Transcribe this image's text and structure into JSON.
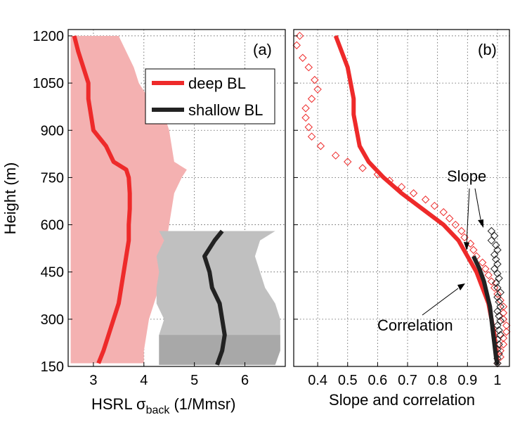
{
  "chart_data": [
    {
      "type": "line",
      "panel_label": "(a)",
      "xlabel": "HSRL σ",
      "xlabel_sub": "back",
      "xlabel_units": " (1/Mmsr)",
      "ylabel": "Height (m)",
      "xlim": [
        2.5,
        6.8
      ],
      "ylim": [
        150,
        1220
      ],
      "xticks": [
        3,
        4,
        5,
        6
      ],
      "yticks": [
        150,
        300,
        450,
        600,
        750,
        900,
        1050,
        1200
      ],
      "grid": true,
      "legend_position": "top-center",
      "series": [
        {
          "name": "deep BL",
          "color": "#ee2a2a",
          "band_color": "#f4b1b1",
          "height": [
            160,
            200,
            250,
            300,
            350,
            400,
            450,
            500,
            550,
            600,
            650,
            700,
            750,
            775,
            800,
            850,
            900,
            950,
            1000,
            1050,
            1100,
            1150,
            1200
          ],
          "mean": [
            3.1,
            3.2,
            3.3,
            3.4,
            3.5,
            3.55,
            3.6,
            3.65,
            3.7,
            3.7,
            3.72,
            3.72,
            3.7,
            3.65,
            3.4,
            3.25,
            3.0,
            2.95,
            2.9,
            2.9,
            2.8,
            2.7,
            2.62
          ],
          "lower": [
            2.55,
            2.55,
            2.55,
            2.55,
            2.55,
            2.55,
            2.55,
            2.55,
            2.55,
            2.55,
            2.55,
            2.55,
            2.55,
            2.55,
            2.55,
            2.55,
            2.55,
            2.55,
            2.55,
            2.55,
            2.55,
            2.55,
            2.55
          ],
          "upper": [
            4.0,
            4.0,
            4.05,
            4.1,
            4.2,
            4.3,
            4.35,
            4.4,
            4.45,
            4.5,
            4.55,
            4.6,
            4.75,
            4.85,
            4.6,
            4.55,
            4.5,
            4.4,
            4.1,
            3.9,
            3.8,
            3.65,
            3.5
          ]
        },
        {
          "name": "shallow BL",
          "color": "#222222",
          "band_color": "#c0c0c0",
          "band_color_low": "#a8a8a8",
          "height": [
            155,
            200,
            250,
            300,
            350,
            400,
            450,
            500,
            550,
            580
          ],
          "mean": [
            5.45,
            5.55,
            5.6,
            5.55,
            5.5,
            5.35,
            5.3,
            5.2,
            5.4,
            5.55
          ],
          "lower": [
            4.3,
            4.3,
            4.3,
            4.4,
            4.25,
            4.25,
            4.3,
            4.25,
            4.4,
            4.3
          ],
          "upper": [
            6.6,
            6.7,
            6.7,
            6.7,
            6.6,
            6.4,
            6.3,
            6.2,
            6.3,
            6.6
          ]
        }
      ]
    },
    {
      "type": "line",
      "panel_label": "(b)",
      "xlabel": "Slope and correlation",
      "xlim": [
        0.32,
        1.04
      ],
      "ylim": [
        150,
        1220
      ],
      "xticks": [
        0.4,
        0.5,
        0.6,
        0.7,
        0.8,
        0.9,
        1
      ],
      "xtick_labels": [
        "0.4",
        "0.5",
        "0.6",
        "0.7",
        "0.8",
        "0.9",
        "1"
      ],
      "yticks": [
        150,
        300,
        450,
        600,
        750,
        900,
        1050,
        1200
      ],
      "grid": true,
      "annotations": [
        {
          "text": "Slope"
        },
        {
          "text": "Correlation"
        }
      ],
      "series": [
        {
          "name": "deep BL correlation",
          "style": "line",
          "color": "#ee2a2a",
          "height": [
            1200,
            1150,
            1100,
            1050,
            1000,
            950,
            900,
            850,
            800,
            750,
            700,
            650,
            600,
            550,
            500,
            450,
            400,
            350,
            300,
            250,
            200,
            160
          ],
          "value": [
            0.46,
            0.48,
            0.5,
            0.51,
            0.52,
            0.52,
            0.53,
            0.54,
            0.57,
            0.62,
            0.68,
            0.75,
            0.82,
            0.87,
            0.9,
            0.93,
            0.95,
            0.97,
            0.98,
            0.99,
            0.995,
            1.0
          ]
        },
        {
          "name": "deep BL slope",
          "style": "diamond",
          "color": "#ee2a2a",
          "height": [
            1200,
            1170,
            1130,
            1100,
            1060,
            1030,
            1000,
            970,
            940,
            910,
            880,
            850,
            820,
            800,
            780,
            760,
            740,
            720,
            700,
            680,
            660,
            640,
            620,
            600,
            580,
            560,
            540,
            520,
            500,
            480,
            460,
            440,
            420,
            400,
            380,
            360,
            340,
            320,
            300,
            280,
            260,
            240,
            220,
            200,
            180,
            160
          ],
          "value": [
            0.34,
            0.33,
            0.35,
            0.37,
            0.39,
            0.4,
            0.38,
            0.36,
            0.36,
            0.37,
            0.38,
            0.41,
            0.46,
            0.5,
            0.55,
            0.6,
            0.64,
            0.68,
            0.72,
            0.76,
            0.79,
            0.82,
            0.84,
            0.86,
            0.88,
            0.89,
            0.91,
            0.92,
            0.93,
            0.95,
            0.96,
            0.97,
            0.98,
            0.99,
            1.0,
            1.01,
            1.02,
            1.02,
            1.02,
            1.03,
            1.03,
            1.02,
            1.02,
            1.01,
            1.01,
            1.0
          ]
        },
        {
          "name": "shallow BL correlation",
          "style": "line",
          "color": "#222222",
          "height": [
            500,
            460,
            420,
            380,
            340,
            300,
            260,
            220,
            180,
            155
          ],
          "value": [
            0.92,
            0.94,
            0.955,
            0.965,
            0.975,
            0.98,
            0.985,
            0.99,
            0.995,
            1.0
          ]
        },
        {
          "name": "shallow BL slope",
          "style": "diamond",
          "color": "#222222",
          "height": [
            580,
            565,
            550,
            535,
            520,
            505,
            490,
            475,
            460,
            445,
            430,
            415,
            400,
            385,
            370,
            355,
            340,
            325,
            310,
            295,
            280,
            265,
            250,
            235,
            220,
            205,
            190,
            175,
            160
          ],
          "value": [
            0.98,
            0.99,
            0.98,
            0.995,
            1.0,
            0.99,
            0.995,
            1.0,
            0.99,
            1.0,
            1.005,
            0.995,
            1.0,
            1.01,
            1.0,
            1.005,
            1.01,
            1.0,
            1.005,
            1.01,
            1.0,
            1.005,
            1.01,
            1.0,
            1.005,
            1.0,
            1.005,
            1.0,
            1.0
          ]
        }
      ]
    }
  ]
}
